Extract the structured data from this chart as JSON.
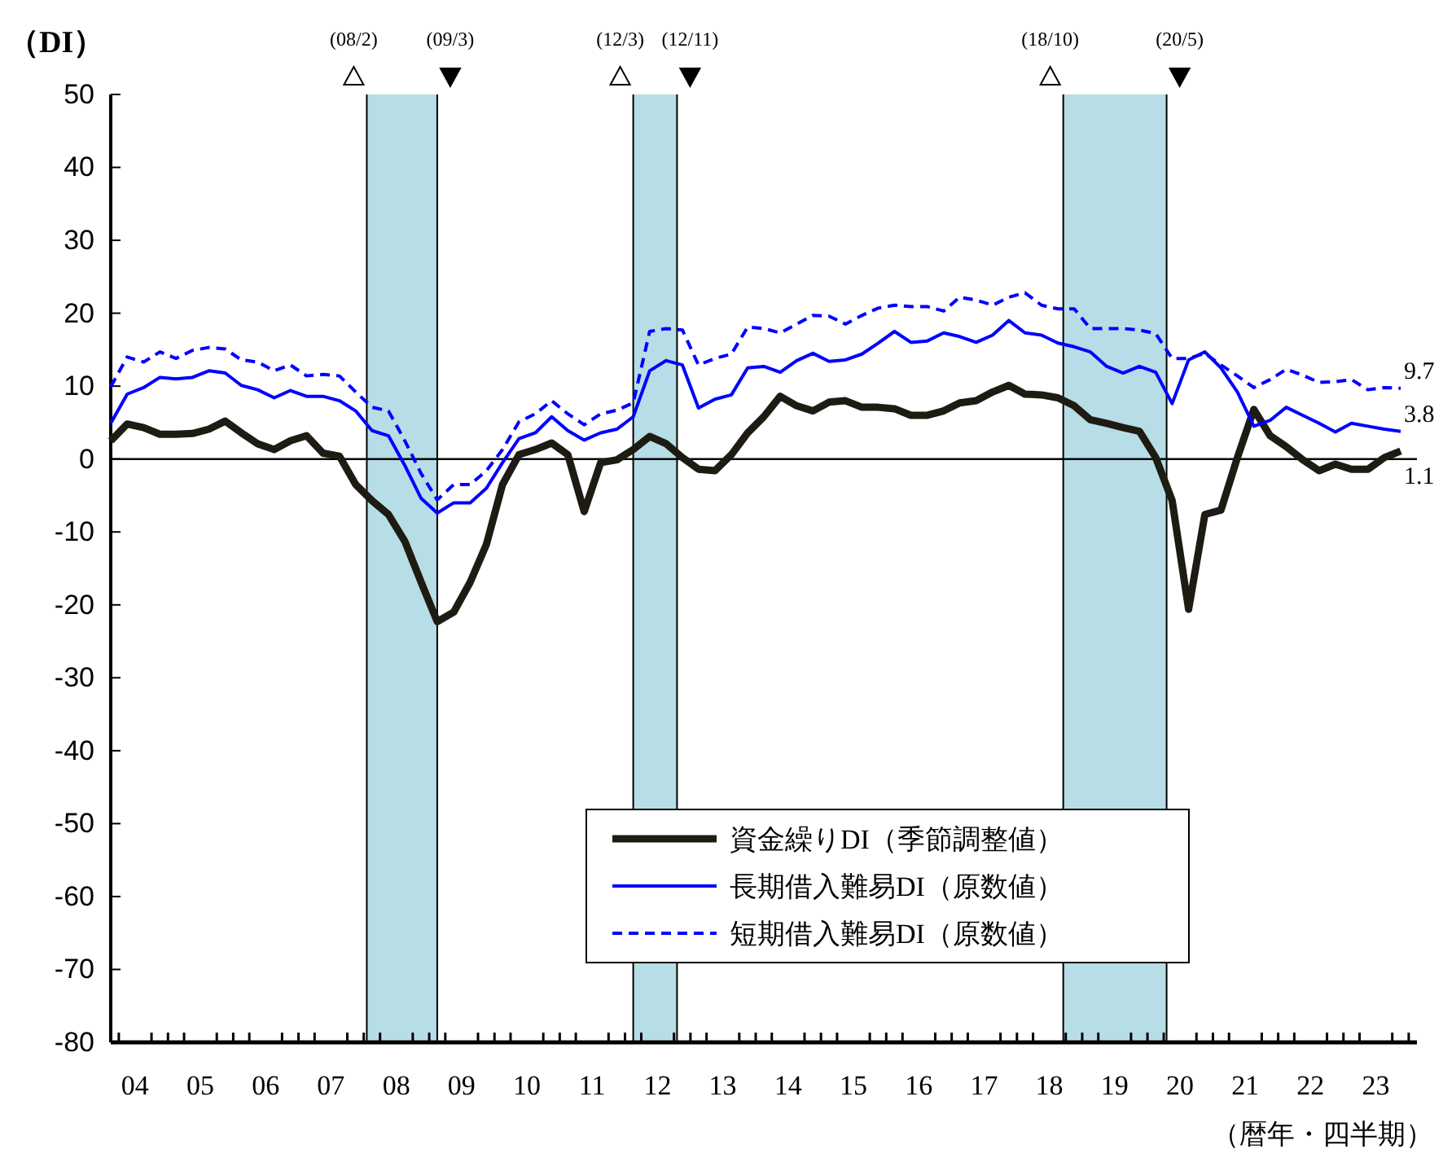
{
  "chart_data": {
    "type": "line",
    "ylabel": "（DI）",
    "xlabel": "（暦年・四半期）",
    "x": [
      "2004-03",
      "2004-06",
      "2004-09",
      "2004-12",
      "2005-03",
      "2005-06",
      "2005-09",
      "2005-12",
      "2006-03",
      "2006-06",
      "2006-09",
      "2006-12",
      "2007-03",
      "2007-06",
      "2007-09",
      "2007-12",
      "2008-03",
      "2008-06",
      "2008-09",
      "2008-12",
      "2009-03",
      "2009-06",
      "2009-09",
      "2009-12",
      "2010-03",
      "2010-06",
      "2010-09",
      "2010-12",
      "2011-03",
      "2011-06",
      "2011-09",
      "2011-12",
      "2012-03",
      "2012-06",
      "2012-09",
      "2012-12",
      "2013-03",
      "2013-06",
      "2013-09",
      "2013-12",
      "2014-03",
      "2014-06",
      "2014-09",
      "2014-12",
      "2015-03",
      "2015-06",
      "2015-09",
      "2015-12",
      "2016-03",
      "2016-06",
      "2016-09",
      "2016-12",
      "2017-03",
      "2017-06",
      "2017-09",
      "2017-12",
      "2018-03",
      "2018-06",
      "2018-09",
      "2018-12",
      "2019-03",
      "2019-06",
      "2019-09",
      "2019-12",
      "2020-03",
      "2020-06",
      "2020-09",
      "2020-12",
      "2021-03",
      "2021-06",
      "2021-09",
      "2021-12",
      "2022-03",
      "2022-06",
      "2022-09",
      "2022-12",
      "2023-03",
      "2023-06",
      "2023-09",
      "2023-12"
    ],
    "series": [
      {
        "name": "資金繰りDI（季節調整値）",
        "color": "#1e1c12",
        "line_style": "solid",
        "values": [
          2.5,
          4.8,
          4.3,
          3.4,
          3.4,
          3.5,
          4.1,
          5.2,
          3.6,
          2.1,
          1.3,
          2.5,
          3.2,
          0.8,
          0.4,
          -3.5,
          -5.7,
          -7.6,
          -11.3,
          -16.9,
          -22.3,
          -21,
          -16.9,
          -11.7,
          -3.5,
          0.6,
          1.3,
          2.2,
          0.6,
          -7.2,
          -0.5,
          -0.1,
          1.3,
          3.1,
          2.1,
          0.2,
          -1.4,
          -1.6,
          0.6,
          3.6,
          5.8,
          8.6,
          7.3,
          6.6,
          7.8,
          8,
          7.1,
          7.1,
          6.9,
          6,
          6,
          6.6,
          7.7,
          8,
          9.2,
          10.1,
          8.9,
          8.8,
          8.4,
          7.3,
          5.4,
          4.9,
          4.3,
          3.8,
          0.2,
          -5.7,
          -20.6,
          -7.6,
          -7,
          0.2,
          6.8,
          3.2,
          1.7,
          -0.1,
          -1.6,
          -0.7,
          -1.4,
          -1.4,
          0.2,
          1.1
        ]
      },
      {
        "name": "長期借入難易DI（原数値）",
        "color": "#0000ff",
        "line_style": "solid",
        "values": [
          4.9,
          8.9,
          9.8,
          11.2,
          11,
          11.2,
          12.1,
          11.8,
          10.1,
          9.5,
          8.4,
          9.4,
          8.6,
          8.6,
          8,
          6.6,
          3.9,
          3.2,
          -0.9,
          -5.4,
          -7.4,
          -6,
          -6,
          -4,
          -0.5,
          2.8,
          3.6,
          5.8,
          3.9,
          2.6,
          3.6,
          4.1,
          5.8,
          12.1,
          13.5,
          12.9,
          7,
          8.2,
          8.8,
          12.5,
          12.7,
          11.9,
          13.5,
          14.5,
          13.4,
          13.6,
          14.4,
          15.9,
          17.5,
          16,
          16.2,
          17.3,
          16.8,
          16,
          17,
          19,
          17.3,
          17,
          15.9,
          15.4,
          14.7,
          12.7,
          11.8,
          12.7,
          11.9,
          7.6,
          13.6,
          14.7,
          12.5,
          9.2,
          4.5,
          5.3,
          7.1,
          6,
          4.9,
          3.7,
          4.9,
          4.5,
          4.1,
          3.8
        ]
      },
      {
        "name": "短期借入難易DI（原数値）",
        "color": "#0000ff",
        "line_style": "dashed",
        "values": [
          9.9,
          14,
          13.3,
          14.7,
          13.8,
          14.9,
          15.3,
          15.1,
          13.6,
          13.3,
          12.1,
          12.9,
          11.4,
          11.6,
          11.4,
          9.2,
          7.1,
          6.6,
          2.5,
          -2,
          -5.6,
          -3.5,
          -3.5,
          -1.6,
          1.3,
          5.1,
          6.2,
          8,
          6.2,
          4.7,
          6.2,
          6.7,
          7.7,
          17.5,
          17.9,
          17.7,
          12.9,
          13.8,
          14.4,
          18.1,
          17.9,
          17.3,
          18.5,
          19.7,
          19.6,
          18.5,
          19.7,
          20.7,
          21.1,
          20.9,
          20.9,
          20.3,
          22.2,
          21.8,
          21.1,
          22.2,
          22.8,
          21.1,
          20.6,
          20.6,
          17.9,
          17.9,
          17.9,
          17.7,
          17.2,
          13.8,
          13.8,
          14.5,
          12.9,
          11.4,
          9.8,
          10.9,
          12.3,
          11.5,
          10.5,
          10.6,
          10.9,
          9.5,
          9.8,
          9.7
        ]
      }
    ],
    "xlim": [
      "2004-03",
      "2024-03"
    ],
    "xticks": [
      {
        "value": "2004-07-15",
        "label": "04"
      },
      {
        "value": "2005-07-15",
        "label": "05"
      },
      {
        "value": "2006-07-15",
        "label": "06"
      },
      {
        "value": "2007-07-15",
        "label": "07"
      },
      {
        "value": "2008-07-15",
        "label": "08"
      },
      {
        "value": "2009-07-15",
        "label": "09"
      },
      {
        "value": "2010-07-15",
        "label": "10"
      },
      {
        "value": "2011-07-15",
        "label": "11"
      },
      {
        "value": "2012-07-15",
        "label": "12"
      },
      {
        "value": "2013-07-15",
        "label": "13"
      },
      {
        "value": "2014-07-15",
        "label": "14"
      },
      {
        "value": "2015-07-15",
        "label": "15"
      },
      {
        "value": "2016-07-15",
        "label": "16"
      },
      {
        "value": "2017-07-15",
        "label": "17"
      },
      {
        "value": "2018-07-15",
        "label": "18"
      },
      {
        "value": "2019-07-15",
        "label": "19"
      },
      {
        "value": "2020-07-15",
        "label": "20"
      },
      {
        "value": "2021-07-15",
        "label": "21"
      },
      {
        "value": "2022-07-15",
        "label": "22"
      },
      {
        "value": "2023-07-15",
        "label": "23"
      },
      {
        "value": "2004-04-15",
        "label": null
      },
      {
        "value": "2004-10-15",
        "label": null
      },
      {
        "value": "2005-01-15",
        "label": null
      },
      {
        "value": "2005-04-15",
        "label": null
      },
      {
        "value": "2005-10-15",
        "label": null
      },
      {
        "value": "2006-01-15",
        "label": null
      },
      {
        "value": "2006-04-15",
        "label": null
      },
      {
        "value": "2006-10-15",
        "label": null
      },
      {
        "value": "2007-01-15",
        "label": null
      },
      {
        "value": "2007-04-15",
        "label": null
      },
      {
        "value": "2007-10-15",
        "label": null
      },
      {
        "value": "2008-01-15",
        "label": null
      },
      {
        "value": "2008-04-15",
        "label": null
      },
      {
        "value": "2008-10-15",
        "label": null
      },
      {
        "value": "2009-01-15",
        "label": null
      },
      {
        "value": "2009-04-15",
        "label": null
      },
      {
        "value": "2009-10-15",
        "label": null
      },
      {
        "value": "2010-01-15",
        "label": null
      },
      {
        "value": "2010-04-15",
        "label": null
      },
      {
        "value": "2010-10-15",
        "label": null
      },
      {
        "value": "2011-01-15",
        "label": null
      },
      {
        "value": "2011-04-15",
        "label": null
      },
      {
        "value": "2011-10-15",
        "label": null
      },
      {
        "value": "2012-01-15",
        "label": null
      },
      {
        "value": "2012-04-15",
        "label": null
      },
      {
        "value": "2012-10-15",
        "label": null
      },
      {
        "value": "2013-01-15",
        "label": null
      },
      {
        "value": "2013-04-15",
        "label": null
      },
      {
        "value": "2013-10-15",
        "label": null
      },
      {
        "value": "2014-01-15",
        "label": null
      },
      {
        "value": "2014-04-15",
        "label": null
      },
      {
        "value": "2014-10-15",
        "label": null
      },
      {
        "value": "2015-01-15",
        "label": null
      },
      {
        "value": "2015-04-15",
        "label": null
      },
      {
        "value": "2015-10-15",
        "label": null
      },
      {
        "value": "2016-01-15",
        "label": null
      },
      {
        "value": "2016-04-15",
        "label": null
      },
      {
        "value": "2016-10-15",
        "label": null
      },
      {
        "value": "2017-01-15",
        "label": null
      },
      {
        "value": "2017-04-15",
        "label": null
      },
      {
        "value": "2017-10-15",
        "label": null
      },
      {
        "value": "2018-01-15",
        "label": null
      },
      {
        "value": "2018-04-15",
        "label": null
      },
      {
        "value": "2018-10-15",
        "label": null
      },
      {
        "value": "2019-01-15",
        "label": null
      },
      {
        "value": "2019-04-15",
        "label": null
      },
      {
        "value": "2019-10-15",
        "label": null
      },
      {
        "value": "2020-01-15",
        "label": null
      },
      {
        "value": "2020-04-15",
        "label": null
      },
      {
        "value": "2020-10-15",
        "label": null
      },
      {
        "value": "2021-01-15",
        "label": null
      },
      {
        "value": "2021-04-15",
        "label": null
      },
      {
        "value": "2021-10-15",
        "label": null
      },
      {
        "value": "2022-01-15",
        "label": null
      },
      {
        "value": "2022-04-15",
        "label": null
      },
      {
        "value": "2022-10-15",
        "label": null
      },
      {
        "value": "2023-01-15",
        "label": null
      },
      {
        "value": "2023-04-15",
        "label": null
      },
      {
        "value": "2023-10-15",
        "label": null
      },
      {
        "value": "2024-01-15",
        "label": null
      }
    ],
    "ylim": [
      -80,
      50
    ],
    "yticks": [
      -80,
      -70,
      -60,
      -50,
      -40,
      -30,
      -20,
      -10,
      0,
      10,
      20,
      30,
      40,
      50
    ],
    "bands": [
      {
        "axis": "x",
        "from": "2008-02",
        "to": "2009-03",
        "color": "#b7dde6"
      },
      {
        "axis": "x",
        "from": "2012-03",
        "to": "2012-11",
        "color": "#b7dde6"
      },
      {
        "axis": "x",
        "from": "2018-10",
        "to": "2020-05",
        "color": "#b7dde6"
      }
    ],
    "ref_lines": [
      {
        "axis": "y",
        "value": 0,
        "color": "#000000"
      },
      {
        "axis": "x",
        "value": "2008-02",
        "label": "(08/2)",
        "color": "#000000"
      },
      {
        "axis": "x",
        "value": "2009-03",
        "label": "(09/3)",
        "color": "#000000"
      },
      {
        "axis": "x",
        "value": "2012-03",
        "label": "(12/3)",
        "color": "#000000"
      },
      {
        "axis": "x",
        "value": "2012-11",
        "label": "(12/11)",
        "color": "#000000"
      },
      {
        "axis": "x",
        "value": "2018-10",
        "label": "(18/10)",
        "color": "#000000"
      },
      {
        "axis": "x",
        "value": "2020-05",
        "label": "(20/5)",
        "color": "#000000"
      }
    ],
    "annotations": [
      {
        "text": "9.7",
        "x": "2023-12",
        "y": 9.7
      },
      {
        "text": "3.8",
        "x": "2023-12",
        "y": 3.8
      },
      {
        "text": "1.1",
        "x": "2023-12",
        "y": 1.1
      }
    ],
    "legend": "bottom right",
    "grid": false
  }
}
